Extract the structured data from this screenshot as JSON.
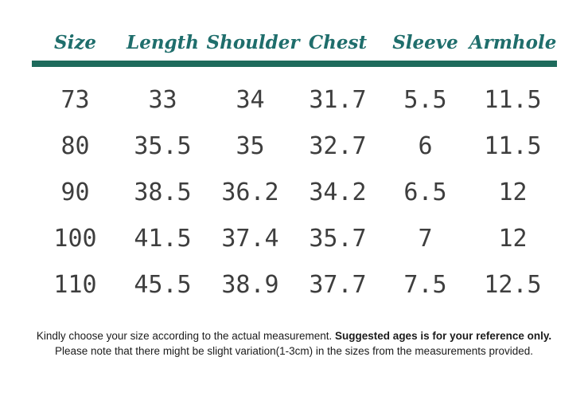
{
  "colors": {
    "header_text_teal": "#1f6e6c",
    "rule_teal": "#1e6b5c",
    "number_gray": "#3e3e3e",
    "note_text": "#1b1b1b",
    "background": "#ffffff"
  },
  "chart_data": {
    "type": "table",
    "columns": [
      "Size",
      "Length",
      "Shoulder",
      "Chest",
      "Sleeve",
      "Armhole"
    ],
    "rows": [
      [
        "73",
        "33",
        "34",
        "31.7",
        "5.5",
        "11.5"
      ],
      [
        "80",
        "35.5",
        "35",
        "32.7",
        "6",
        "11.5"
      ],
      [
        "90",
        "38.5",
        "36.2",
        "34.2",
        "6.5",
        "12"
      ],
      [
        "100",
        "41.5",
        "37.4",
        "35.7",
        "7",
        "12"
      ],
      [
        "110",
        "45.5",
        "38.9",
        "37.7",
        "7.5",
        "12.5"
      ]
    ],
    "title": "",
    "layout_hints": {
      "header_rule": true,
      "gridlines": false
    }
  },
  "note": {
    "line1_regular": "Kindly choose your size  according to the actual measurement. ",
    "line1_bold": "Suggested ages is for your reference only.",
    "line2": "Please note that there might be slight variation(1-3cm) in the sizes from the measurements provided."
  }
}
